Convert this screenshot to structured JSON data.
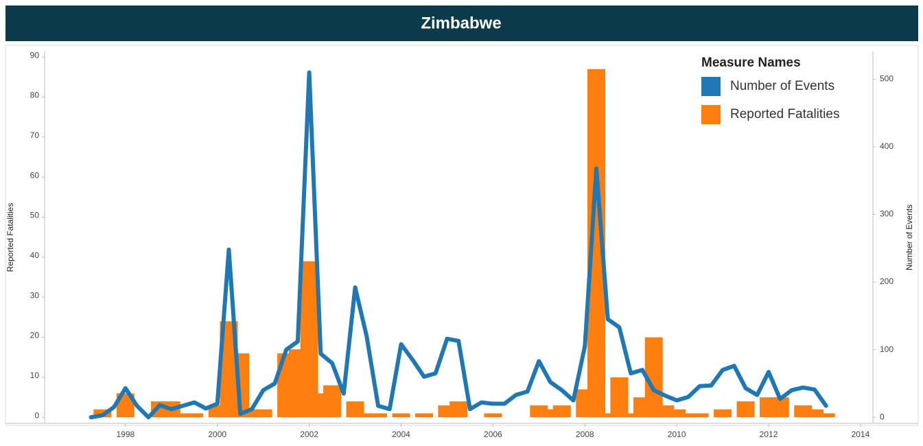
{
  "chart_data": {
    "type": "bar-line",
    "title": "Zimbabwe",
    "ylabel": "Reported Fatalities",
    "y2label": "Number of Events",
    "legend_title": "Measure Names",
    "legend": "top-right",
    "x": [
      1997.25,
      1997.5,
      1997.75,
      1998,
      1998.25,
      1998.5,
      1998.75,
      1999,
      1999.25,
      1999.5,
      1999.75,
      2000,
      2000.25,
      2000.5,
      2000.75,
      2001,
      2001.25,
      2001.5,
      2001.75,
      2002,
      2002.25,
      2002.5,
      2002.75,
      2003,
      2003.25,
      2003.5,
      2003.75,
      2004,
      2004.25,
      2004.5,
      2004.75,
      2005,
      2005.25,
      2005.5,
      2005.75,
      2006,
      2006.25,
      2006.5,
      2006.75,
      2007,
      2007.25,
      2007.5,
      2007.75,
      2008,
      2008.25,
      2008.5,
      2008.75,
      2009,
      2009.25,
      2009.5,
      2009.75,
      2010,
      2010.25,
      2010.5,
      2010.75,
      2011,
      2011.25,
      2011.5,
      2011.75,
      2012,
      2012.25,
      2012.5,
      2012.75,
      2013,
      2013.25
    ],
    "series": [
      {
        "name": "Number of Events",
        "color": "#1f77b4",
        "axis": "y2",
        "kind": "line",
        "values": [
          0,
          3,
          15,
          43,
          17,
          0,
          18,
          12,
          17,
          22,
          13,
          20,
          248,
          5,
          12,
          40,
          50,
          100,
          112,
          510,
          94,
          80,
          35,
          192,
          120,
          17,
          12,
          108,
          85,
          60,
          65,
          116,
          113,
          12,
          22,
          20,
          20,
          33,
          38,
          83,
          52,
          40,
          25,
          105,
          368,
          145,
          133,
          65,
          70,
          40,
          32,
          25,
          30,
          46,
          47,
          70,
          76,
          43,
          33,
          67,
          27,
          40,
          44,
          41,
          17
        ]
      },
      {
        "name": "Reported Fatalities",
        "color": "#ff7f0e",
        "axis": "y",
        "kind": "bar",
        "values": [
          0,
          2,
          0,
          6,
          0,
          0,
          4,
          4,
          1,
          1,
          0,
          3,
          24,
          16,
          2,
          2,
          0,
          16,
          17,
          39,
          6,
          8,
          0,
          4,
          1,
          1,
          0,
          1,
          0,
          1,
          0,
          3,
          4,
          0,
          0,
          1,
          0,
          0,
          0,
          3,
          2,
          3,
          0,
          7,
          87,
          1,
          10,
          1,
          5,
          20,
          3,
          2,
          1,
          1,
          0,
          2,
          0,
          4,
          0,
          5,
          5,
          0,
          3,
          2,
          1
        ]
      }
    ],
    "xlim": [
      1996.24,
      2014.27
    ],
    "xticks": [
      1998,
      2000,
      2002,
      2004,
      2006,
      2008,
      2010,
      2012,
      2014
    ],
    "ylim": [
      -1.5,
      91.4
    ],
    "yticks": [
      0,
      10,
      20,
      30,
      40,
      50,
      60,
      70,
      80,
      90
    ],
    "y2lim": [
      -9,
      541
    ],
    "y2ticks": [
      0,
      100,
      200,
      300,
      400,
      500
    ]
  }
}
